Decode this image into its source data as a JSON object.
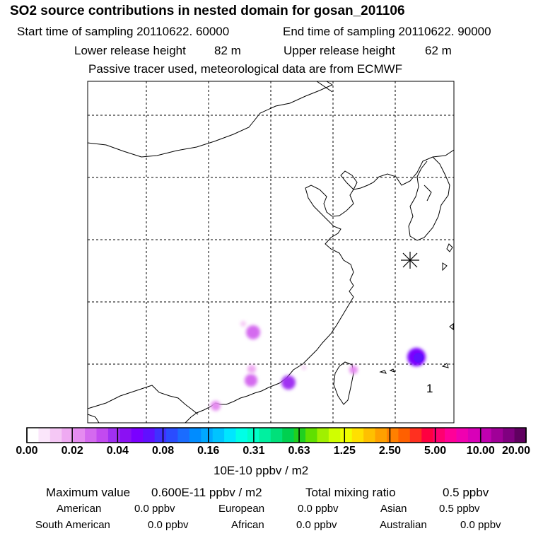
{
  "header": {
    "title": "SO2 source contributions in nested domain for gosan_201106",
    "start_label": "Start time of sampling 20110622. 60000",
    "end_label": "End time of sampling 20110622. 90000",
    "lower_label": "Lower release height",
    "lower_value": "82 m",
    "upper_label": "Upper release height",
    "upper_value": "62 m",
    "tracer_note": "Passive tracer used, meteorological data are from ECMWF"
  },
  "map": {
    "receptor_marker": "asterisk-icon",
    "panel_number": "1",
    "plume_color": "#a000ff"
  },
  "colorbar": {
    "tick_labels": [
      "0.00",
      "0.02",
      "0.04",
      "0.08",
      "0.16",
      "0.31",
      "0.63",
      "1.25",
      "2.50",
      "5.00",
      "10.00",
      "20.00"
    ],
    "colors": [
      "#ffffff",
      "#fbe6fb",
      "#f5c8f5",
      "#efaaf2",
      "#e58cf0",
      "#d46aef",
      "#c24af0",
      "#a030f2",
      "#8b10f3",
      "#7a00ff",
      "#6010ff",
      "#4030ff",
      "#2a4cff",
      "#1a6cff",
      "#008cff",
      "#00a8ff",
      "#00c4ff",
      "#00e6ff",
      "#00ffe6",
      "#00ffc8",
      "#00f0a0",
      "#00e07a",
      "#00d050",
      "#20d020",
      "#60e000",
      "#a0f000",
      "#d0ff00",
      "#f0ff00",
      "#ffe000",
      "#ffc000",
      "#ffa000",
      "#ff8000",
      "#ff6000",
      "#ff3020",
      "#ff0040",
      "#ff0070",
      "#ff0098",
      "#f000b0",
      "#d800b8",
      "#c000b0",
      "#a00098",
      "#800080",
      "#600060"
    ],
    "unit_label": "10E-10 ppbv / m2"
  },
  "summary": {
    "max_label": "Maximum value",
    "max_value": "0.600E-11 ppbv / m2",
    "total_label": "Total mixing ratio",
    "total_value": "0.5 ppbv",
    "regions": [
      {
        "name": "American",
        "value": "0.0 ppbv"
      },
      {
        "name": "European",
        "value": "0.0 ppbv"
      },
      {
        "name": "Asian",
        "value": "0.5 ppbv"
      },
      {
        "name": "South American",
        "value": "0.0 ppbv"
      },
      {
        "name": "African",
        "value": "0.0 ppbv"
      },
      {
        "name": "Australian",
        "value": "0.0 ppbv"
      }
    ]
  }
}
